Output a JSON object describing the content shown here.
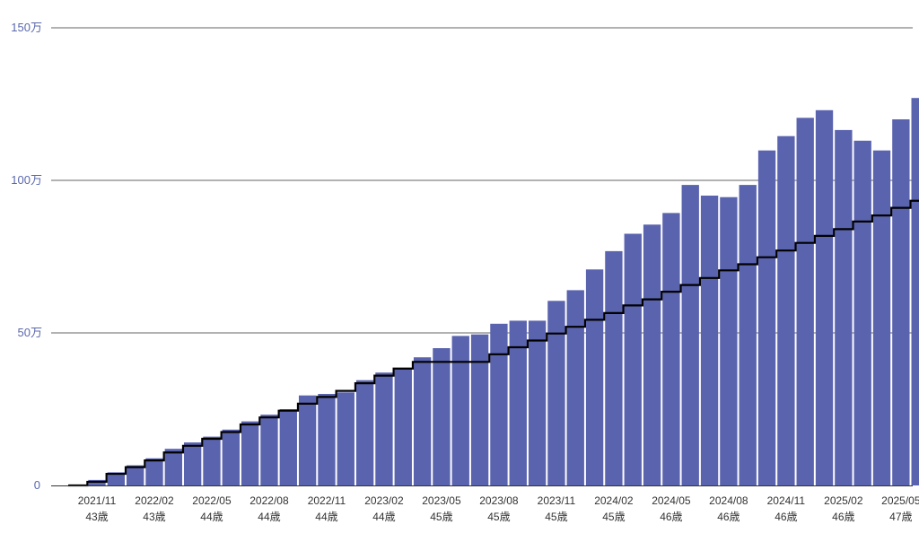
{
  "chart_data": {
    "type": "bar",
    "bar_color": "#5a63ae",
    "line_color": "#000000",
    "grid_color": "#666666",
    "ytick_color": "#5a68ae",
    "ylim": [
      0,
      150
    ],
    "yticks": [
      {
        "value": 0,
        "label": "0"
      },
      {
        "value": 50,
        "label": "50万"
      },
      {
        "value": 100,
        "label": "100万"
      },
      {
        "value": 150,
        "label": "150万"
      }
    ],
    "categories": [
      "2021/10",
      "2021/11",
      "2021/12",
      "2022/01",
      "2022/02",
      "2022/03",
      "2022/04",
      "2022/05",
      "2022/06",
      "2022/07",
      "2022/08",
      "2022/09",
      "2022/10",
      "2022/11",
      "2022/12",
      "2023/01",
      "2023/02",
      "2023/03",
      "2023/04",
      "2023/05",
      "2023/06",
      "2023/07",
      "2023/08",
      "2023/09",
      "2023/10",
      "2023/11",
      "2023/12",
      "2024/01",
      "2024/02",
      "2024/03",
      "2024/04",
      "2024/05",
      "2024/06",
      "2024/07",
      "2024/08",
      "2024/09",
      "2024/10",
      "2024/11",
      "2024/12",
      "2025/01",
      "2025/02",
      "2025/03",
      "2025/04",
      "2025/05",
      "2025/06"
    ],
    "x_tick_labels": [
      {
        "index": 1,
        "date": "2021/11",
        "age": "43歳"
      },
      {
        "index": 4,
        "date": "2022/02",
        "age": "43歳"
      },
      {
        "index": 7,
        "date": "2022/05",
        "age": "44歳"
      },
      {
        "index": 10,
        "date": "2022/08",
        "age": "44歳"
      },
      {
        "index": 13,
        "date": "2022/11",
        "age": "44歳"
      },
      {
        "index": 16,
        "date": "2023/02",
        "age": "44歳"
      },
      {
        "index": 19,
        "date": "2023/05",
        "age": "45歳"
      },
      {
        "index": 22,
        "date": "2023/08",
        "age": "45歳"
      },
      {
        "index": 25,
        "date": "2023/11",
        "age": "45歳"
      },
      {
        "index": 28,
        "date": "2024/02",
        "age": "45歳"
      },
      {
        "index": 31,
        "date": "2024/05",
        "age": "46歳"
      },
      {
        "index": 34,
        "date": "2024/08",
        "age": "46歳"
      },
      {
        "index": 37,
        "date": "2024/11",
        "age": "46歳"
      },
      {
        "index": 40,
        "date": "2025/02",
        "age": "46歳"
      },
      {
        "index": 43,
        "date": "2025/05",
        "age": "47歳"
      }
    ],
    "series": [
      {
        "kind": "bar",
        "values": [
          0.3,
          1.8,
          4.3,
          6.6,
          8.9,
          12.0,
          14.1,
          16.0,
          18.3,
          21.0,
          23.2,
          25.0,
          29.5,
          30.0,
          30.5,
          34.5,
          37.0,
          38.5,
          42.0,
          45.0,
          49.0,
          49.5,
          53.0,
          54.0,
          54.0,
          60.5,
          64.0,
          70.8,
          76.8,
          82.5,
          85.5,
          89.3,
          98.5,
          95.0,
          94.5,
          98.5,
          109.8,
          114.5,
          120.5,
          123.0,
          116.5,
          113.0,
          109.8,
          120.0,
          127.0
        ]
      },
      {
        "kind": "step",
        "values": [
          0,
          1.2,
          3.8,
          6.0,
          8.2,
          10.8,
          13.0,
          15.3,
          17.5,
          20.0,
          22.3,
          24.5,
          26.8,
          29.0,
          31.0,
          33.5,
          36.0,
          38.3,
          40.5,
          40.5,
          40.5,
          40.5,
          43.0,
          45.3,
          47.5,
          49.8,
          52.0,
          54.3,
          56.5,
          59.0,
          61.0,
          63.5,
          65.7,
          68.0,
          70.5,
          72.5,
          74.8,
          77.0,
          79.5,
          81.8,
          84.0,
          86.5,
          88.5,
          91.0,
          93.3
        ]
      }
    ]
  }
}
